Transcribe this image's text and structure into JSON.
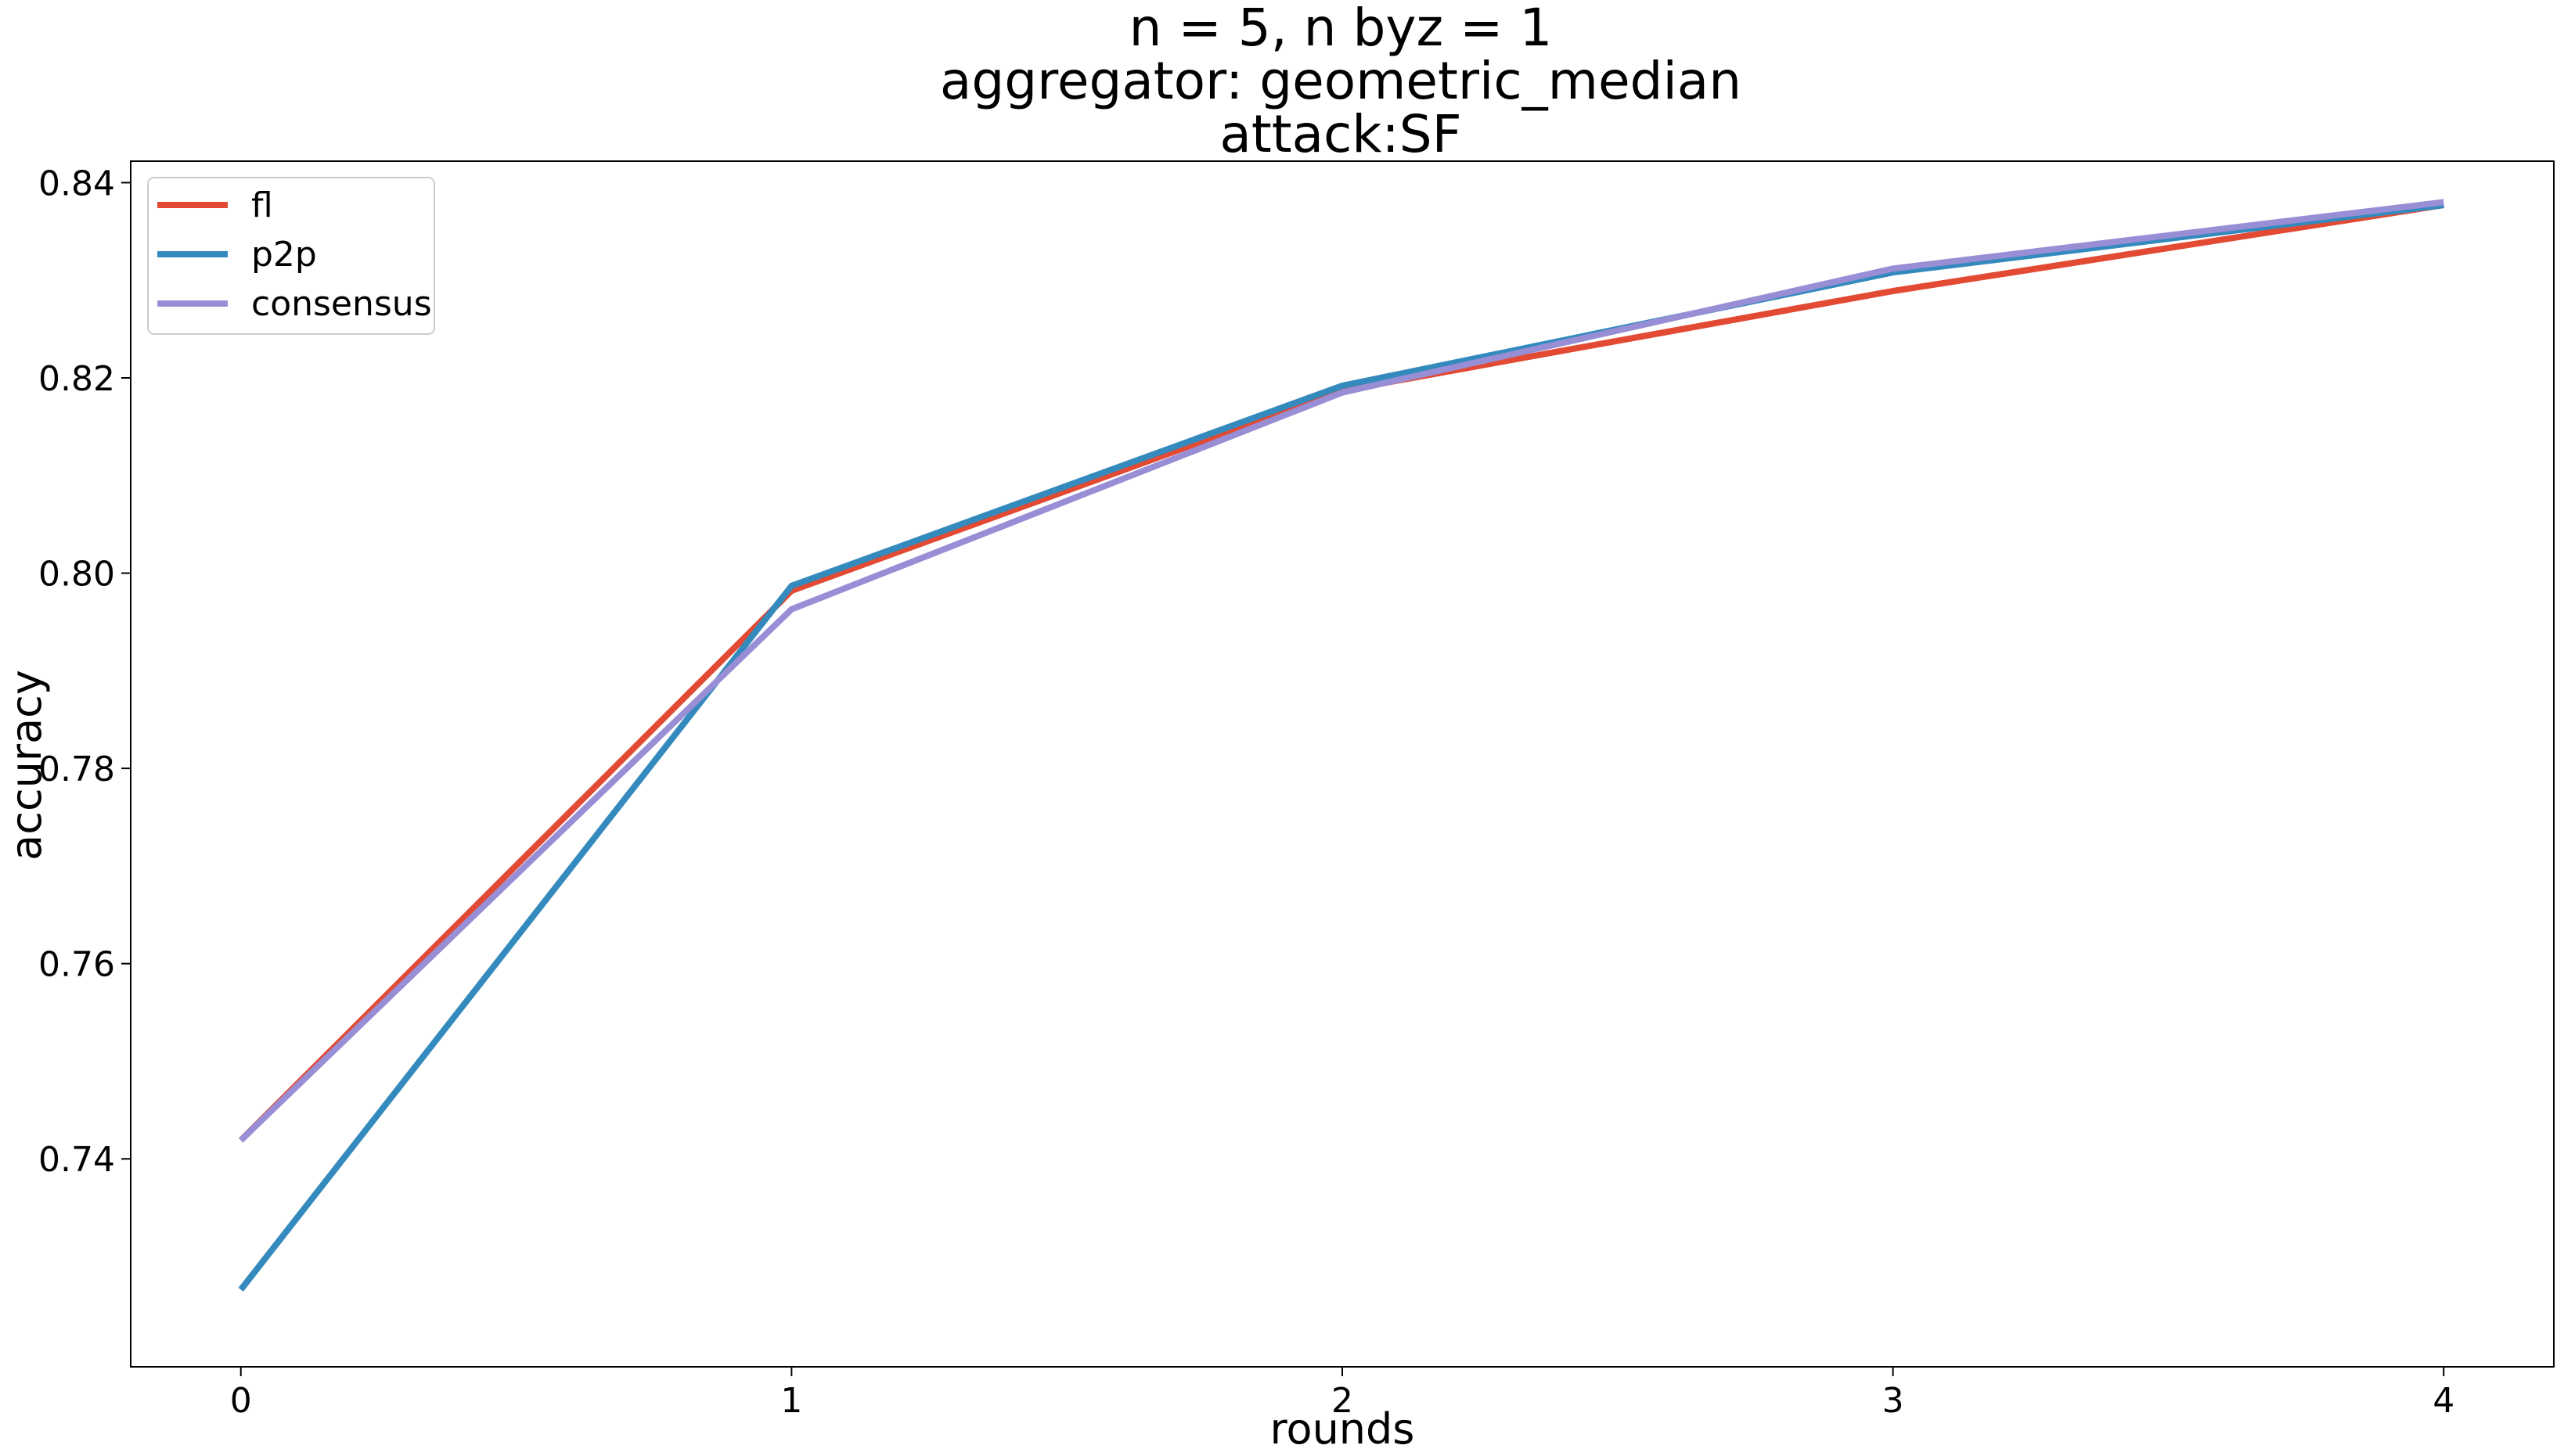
{
  "chart_data": {
    "type": "line",
    "title_lines": [
      "n = 5, n byz = 1",
      "aggregator: geometric_median",
      "attack:SF"
    ],
    "xlabel": "rounds",
    "ylabel": "accuracy",
    "x": [
      0,
      1,
      2,
      3,
      4
    ],
    "x_ticks": [
      "0",
      "1",
      "2",
      "3",
      "4"
    ],
    "y_ticks": [
      "0.74",
      "0.76",
      "0.78",
      "0.80",
      "0.82",
      "0.84"
    ],
    "xlim": [
      -0.2,
      4.2
    ],
    "ylim": [
      0.7187,
      0.8422
    ],
    "grid": false,
    "legend_position": "upper left",
    "series": [
      {
        "name": "fl",
        "color": "#e24a33",
        "values": [
          0.7419,
          0.7982,
          0.8187,
          0.8289,
          0.8377
        ]
      },
      {
        "name": "p2p",
        "color": "#348abd",
        "values": [
          0.7266,
          0.7987,
          0.8192,
          0.8308,
          0.8377
        ]
      },
      {
        "name": "consensus",
        "color": "#988ed5",
        "values": [
          0.7419,
          0.7963,
          0.8185,
          0.8312,
          0.838
        ]
      }
    ]
  }
}
